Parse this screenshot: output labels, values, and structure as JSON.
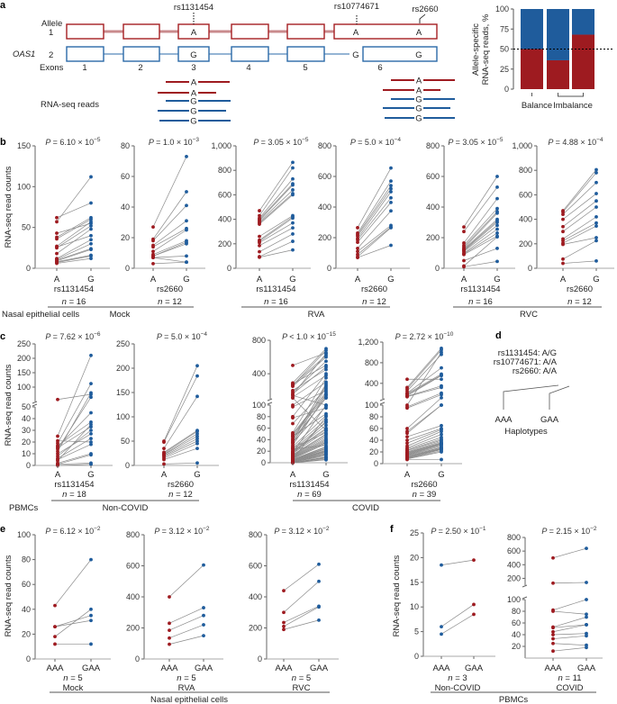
{
  "colors": {
    "allele1": "#9e1b20",
    "allele2": "#1f5c9c",
    "pair_line": "#8a8a8a"
  },
  "panel_labels": {
    "a": "a",
    "b": "b",
    "c": "c",
    "d": "d",
    "e": "e",
    "f": "f"
  },
  "symbols": {
    "p": "P",
    "n": "n"
  },
  "panel_a": {
    "gene": "OAS1",
    "allele_label": "Allele",
    "allele1": "1",
    "allele2": "2",
    "exons_label": "Exons",
    "exon_numbers": [
      "1",
      "2",
      "3",
      "4",
      "5",
      "6"
    ],
    "snps": [
      "rs1131454",
      "rs10774671",
      "rs2660"
    ],
    "allele1_bases": [
      "A",
      "A",
      "A"
    ],
    "allele2_bases": [
      "G",
      "G",
      "G"
    ],
    "reads_label": "RNA-seq reads",
    "reads_left": [
      "A",
      "A",
      "G",
      "G",
      "G"
    ],
    "reads_right": [
      "A",
      "A",
      "G",
      "G",
      "G"
    ]
  },
  "panel_d": {
    "genotypes": [
      "rs1131454: A/G",
      "rs10774671: A/A",
      "rs2660: A/A"
    ],
    "haplotypes": [
      "AAA",
      "GAA"
    ],
    "haplotypes_label": "Haplotypes"
  },
  "y_axis_title": "RNA-seq read counts",
  "groups": {
    "b": [
      {
        "label": "Nasal epithelial cells"
      },
      {
        "label": "Mock"
      },
      {
        "label": "RVA"
      },
      {
        "label": "RVC"
      }
    ],
    "c": [
      {
        "label": "PBMCs"
      },
      {
        "label": "Non-COVID"
      },
      {
        "label": "COVID"
      }
    ],
    "e": [
      {
        "label": "Nasal epithelial cells"
      }
    ],
    "f": [
      {
        "label": "PBMCs"
      }
    ]
  },
  "chart_data": [
    {
      "id": "a_bar",
      "type": "bar",
      "stacked": true,
      "ylabel": [
        "Allele-specific",
        "RNA-seq reads, %"
      ],
      "ylim": [
        0,
        100
      ],
      "ticks": [
        0,
        25,
        50,
        75,
        100
      ],
      "reference_line": 50,
      "categories": [
        "Balance",
        "Imbalance"
      ],
      "bars": [
        {
          "allele1": 50,
          "allele2": 50
        },
        {
          "allele1": 36,
          "allele2": 64
        },
        {
          "allele1": 68,
          "allele2": 32
        }
      ]
    },
    {
      "id": "b1",
      "type": "line",
      "p": "= 6.10 × 10",
      "p_exp": "−5",
      "x": [
        "A",
        "G"
      ],
      "snp": "rs1131454",
      "n": "16",
      "y_ranges": [
        [
          0,
          150
        ]
      ],
      "ticks": [
        0,
        50,
        100,
        150
      ],
      "a": [
        62,
        57,
        43,
        38,
        36,
        27,
        26,
        25,
        18,
        12,
        11,
        10,
        9,
        8,
        7,
        6
      ],
      "g": [
        80,
        112,
        55,
        62,
        60,
        57,
        40,
        52,
        48,
        35,
        30,
        24,
        23,
        16,
        15,
        12
      ]
    },
    {
      "id": "b2",
      "type": "line",
      "p": "= 1.0 × 10",
      "p_exp": "−3",
      "x": [
        "A",
        "G"
      ],
      "snp": "rs2660",
      "n": "12",
      "y_ranges": [
        [
          0,
          80
        ]
      ],
      "ticks": [
        0,
        20,
        40,
        60,
        80
      ],
      "a": [
        27,
        19,
        18,
        15,
        14,
        11,
        9,
        8,
        8,
        7,
        7,
        3
      ],
      "g": [
        73,
        50,
        41,
        31,
        26,
        25,
        18,
        17,
        16,
        8,
        4,
        4
      ]
    },
    {
      "id": "b3",
      "type": "line",
      "p": "= 3.05 × 10",
      "p_exp": "−5",
      "x": [
        "A",
        "G"
      ],
      "snp": "rs1131454",
      "n": "16",
      "y_ranges": [
        [
          0,
          1000
        ]
      ],
      "ticks": [
        0,
        200,
        400,
        600,
        800,
        1000
      ],
      "a": [
        470,
        430,
        410,
        400,
        390,
        380,
        370,
        360,
        260,
        230,
        220,
        210,
        185,
        135,
        95,
        90
      ],
      "g": [
        865,
        820,
        730,
        690,
        680,
        640,
        610,
        600,
        430,
        420,
        410,
        370,
        330,
        280,
        220,
        150
      ]
    },
    {
      "id": "b4",
      "type": "line",
      "p": "= 5.0 × 10",
      "p_exp": "−4",
      "x": [
        "A",
        "G"
      ],
      "snp": "rs2660",
      "n": "12",
      "y_ranges": [
        [
          0,
          800
        ]
      ],
      "ticks": [
        0,
        200,
        400,
        600,
        800
      ],
      "a": [
        265,
        230,
        220,
        210,
        195,
        185,
        170,
        130,
        110,
        90,
        75,
        70
      ],
      "g": [
        655,
        570,
        540,
        520,
        500,
        460,
        430,
        375,
        280,
        270,
        265,
        150
      ]
    },
    {
      "id": "b5",
      "type": "line",
      "p": "= 3.05 × 10",
      "p_exp": "−5",
      "x": [
        "A",
        "G"
      ],
      "snp": "rs1131454",
      "n": "16",
      "y_ranges": [
        [
          0,
          800
        ]
      ],
      "ticks": [
        0,
        200,
        400,
        600,
        800
      ],
      "a": [
        270,
        240,
        165,
        150,
        140,
        130,
        125,
        120,
        115,
        110,
        100,
        95,
        90,
        50,
        15,
        10
      ],
      "g": [
        600,
        530,
        455,
        390,
        370,
        360,
        320,
        310,
        300,
        280,
        255,
        230,
        210,
        130,
        205,
        45
      ]
    },
    {
      "id": "b6",
      "type": "line",
      "p": "= 4.88 × 10",
      "p_exp": "−4",
      "x": [
        "A",
        "G"
      ],
      "snp": "rs2660",
      "n": "12",
      "y_ranges": [
        [
          0,
          1000
        ]
      ],
      "ticks": [
        0,
        200,
        400,
        600,
        800,
        1000
      ],
      "a": [
        470,
        460,
        440,
        400,
        340,
        300,
        240,
        225,
        205,
        195,
        75,
        40
      ],
      "g": [
        805,
        780,
        700,
        610,
        550,
        500,
        420,
        370,
        345,
        250,
        225,
        60
      ]
    },
    {
      "id": "c1",
      "type": "line",
      "p": "= 7.62 × 10",
      "p_exp": "−6",
      "x": [
        "A",
        "G"
      ],
      "snp": "rs1131454",
      "n": "18",
      "y_ranges": [
        [
          0,
          50
        ],
        [
          50,
          250
        ]
      ],
      "ticks": [
        0,
        10,
        20,
        30,
        40,
        50,
        100,
        150,
        200,
        250
      ],
      "a": [
        57,
        25,
        21,
        19,
        17,
        16,
        15,
        14,
        12,
        10,
        8,
        6,
        5,
        4,
        2,
        1,
        1,
        0
      ],
      "g": [
        75,
        210,
        20,
        112,
        37,
        45,
        33,
        65,
        80,
        27,
        30,
        23,
        18,
        35,
        10,
        9,
        2,
        1
      ]
    },
    {
      "id": "c2",
      "type": "line",
      "p": "= 5.0 × 10",
      "p_exp": "−4",
      "x": [
        "A",
        "G"
      ],
      "snp": "rs2660",
      "n": "12",
      "y_ranges": [
        [
          0,
          250
        ]
      ],
      "ticks": [
        0,
        50,
        100,
        150,
        200,
        250
      ],
      "a": [
        50,
        48,
        35,
        27,
        25,
        23,
        22,
        20,
        18,
        15,
        12,
        3
      ],
      "g": [
        205,
        184,
        142,
        72,
        70,
        65,
        60,
        55,
        50,
        45,
        35,
        5
      ]
    },
    {
      "id": "c3",
      "type": "line",
      "p": "< 1.0 × 10",
      "p_exp": "−15",
      "x": [
        "A",
        "G"
      ],
      "snp": "rs1131454",
      "n": "69",
      "y_ranges": [
        [
          0,
          100
        ],
        [
          100,
          800
        ]
      ],
      "ticks": [
        0,
        20,
        40,
        60,
        80,
        100,
        400,
        800
      ],
      "a": [
        500,
        290,
        280,
        270,
        260,
        250,
        200,
        180,
        160,
        150,
        140,
        120,
        110,
        100,
        97,
        80,
        78,
        68,
        52,
        50,
        48,
        46,
        45,
        42,
        40,
        38,
        36,
        35,
        33,
        30,
        28,
        26,
        25,
        24,
        22,
        20,
        19,
        18,
        17,
        16,
        15,
        14,
        13,
        12,
        11,
        10,
        9,
        8,
        8,
        7,
        6,
        6,
        5,
        5,
        4,
        4,
        3,
        3,
        2,
        2,
        2,
        1,
        1,
        1,
        0,
        0,
        0,
        0,
        0
      ],
      "g": [
        650,
        700,
        500,
        620,
        680,
        600,
        450,
        550,
        480,
        640,
        100,
        380,
        56,
        300,
        200,
        400,
        95,
        220,
        350,
        180,
        160,
        85,
        140,
        260,
        110,
        280,
        120,
        98,
        240,
        150,
        82,
        52,
        75,
        30,
        70,
        65,
        60,
        58,
        100,
        55,
        72,
        50,
        48,
        45,
        42,
        40,
        38,
        36,
        35,
        33,
        80,
        28,
        27,
        25,
        24,
        22,
        21,
        20,
        19,
        18,
        16,
        15,
        14,
        12,
        10,
        9,
        8,
        6,
        5
      ]
    },
    {
      "id": "c4",
      "type": "line",
      "p": "= 2.72 × 10",
      "p_exp": "−10",
      "x": [
        "A",
        "G"
      ],
      "snp": "rs2660",
      "n": "39",
      "y_ranges": [
        [
          0,
          100
        ],
        [
          100,
          1200
        ]
      ],
      "ticks": [
        0,
        20,
        40,
        60,
        80,
        100,
        400,
        800,
        1200
      ],
      "a": [
        480,
        320,
        290,
        250,
        210,
        200,
        180,
        160,
        150,
        140,
        100,
        97,
        95,
        60,
        55,
        52,
        46,
        40,
        35,
        30,
        27,
        25,
        23,
        22,
        20,
        19,
        18,
        17,
        16,
        15,
        14,
        13,
        12,
        11,
        10,
        9,
        8,
        8,
        7
      ],
      "g": [
        480,
        1080,
        1050,
        960,
        700,
        580,
        560,
        550,
        350,
        320,
        1000,
        210,
        180,
        120,
        100,
        100,
        65,
        60,
        58,
        55,
        50,
        45,
        42,
        40,
        38,
        36,
        35,
        34,
        33,
        32,
        30,
        28,
        27,
        26,
        25,
        24,
        22,
        20,
        7
      ]
    },
    {
      "id": "e1",
      "type": "line",
      "p": "= 6.12 × 10",
      "p_exp": "−2",
      "x": [
        "AAA",
        "GAA"
      ],
      "condition": "Mock",
      "n": "5",
      "y_ranges": [
        [
          0,
          100
        ]
      ],
      "ticks": [
        0,
        20,
        40,
        60,
        80,
        100
      ],
      "a": [
        43,
        26,
        26,
        18,
        12
      ],
      "g": [
        80,
        35,
        31,
        40,
        12
      ]
    },
    {
      "id": "e2",
      "type": "line",
      "p": "= 3.12 × 10",
      "p_exp": "−2",
      "x": [
        "AAA",
        "GAA"
      ],
      "condition": "RVA",
      "n": "5",
      "y_ranges": [
        [
          0,
          800
        ]
      ],
      "ticks": [
        0,
        200,
        400,
        600,
        800
      ],
      "a": [
        400,
        230,
        185,
        135,
        95
      ],
      "g": [
        605,
        330,
        280,
        220,
        150
      ]
    },
    {
      "id": "e3",
      "type": "line",
      "p": "= 3.12 × 10",
      "p_exp": "−2",
      "x": [
        "AAA",
        "GAA"
      ],
      "condition": "RVC",
      "n": "5",
      "y_ranges": [
        [
          0,
          800
        ]
      ],
      "ticks": [
        0,
        200,
        400,
        600,
        800
      ],
      "a": [
        440,
        300,
        235,
        210,
        190
      ],
      "g": [
        610,
        500,
        340,
        335,
        250
      ]
    },
    {
      "id": "f1",
      "type": "line",
      "p": "= 2.50 × 10",
      "p_exp": "−1",
      "x": [
        "AAA",
        "GAA"
      ],
      "condition": "Non-COVID",
      "n": "3",
      "y_ranges": [
        [
          0,
          25
        ]
      ],
      "ticks": [
        0,
        5,
        10,
        15,
        20,
        25
      ],
      "a_color": "#1f5c9c",
      "g_color": "#9e1b20",
      "a": [
        18.5,
        6,
        4.5
      ],
      "g": [
        19.5,
        10.5,
        8.5
      ]
    },
    {
      "id": "f2",
      "type": "line",
      "p": "= 2.15 × 10",
      "p_exp": "−2",
      "x": [
        "AAA",
        "GAA"
      ],
      "condition": "COVID",
      "n": "11",
      "y_ranges": [
        [
          0,
          100
        ],
        [
          100,
          800
        ]
      ],
      "ticks": [
        20,
        40,
        60,
        80,
        100,
        200,
        400,
        600,
        800
      ],
      "a": [
        500,
        130,
        82,
        80,
        53,
        52,
        45,
        40,
        33,
        25,
        12
      ],
      "g": [
        640,
        140,
        100,
        75,
        70,
        57,
        57,
        42,
        38,
        22,
        18
      ]
    }
  ]
}
